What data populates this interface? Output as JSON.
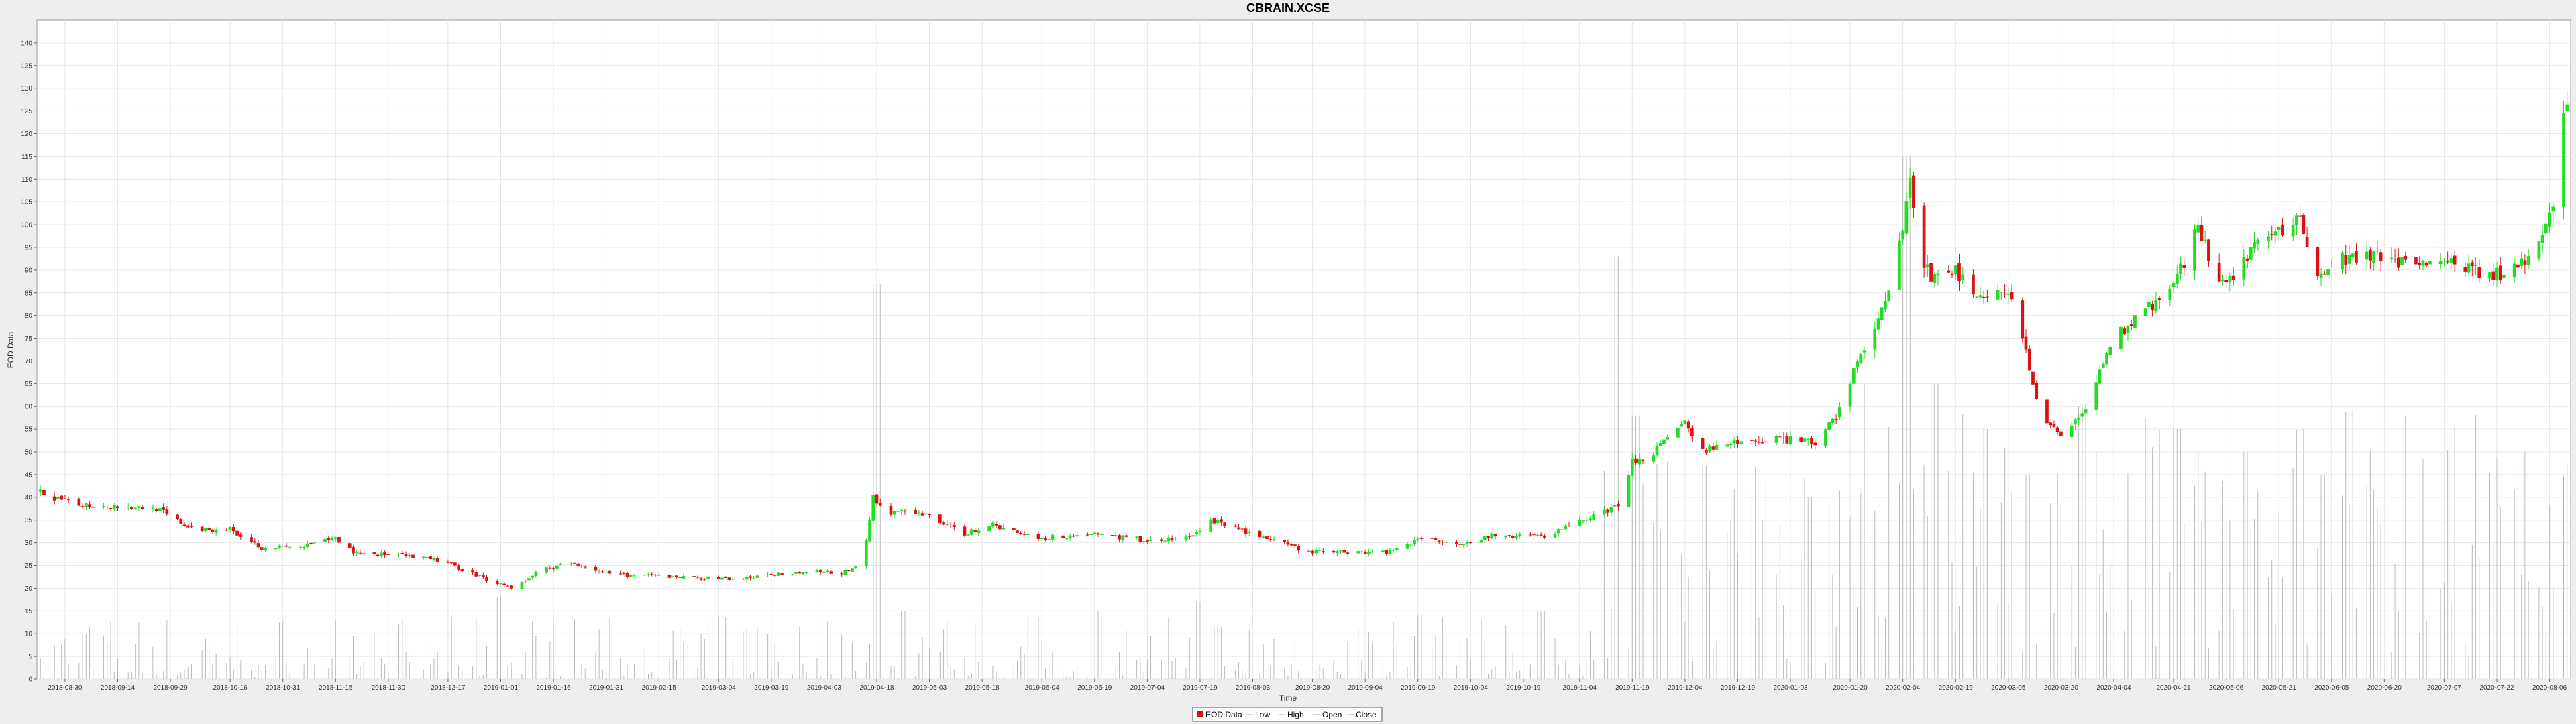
{
  "chart_data": {
    "type": "candlestick",
    "title": "CBRAIN.XCSE",
    "xlabel": "Time",
    "ylabel": "EOD Data",
    "ylim": [
      0,
      145
    ],
    "yticks": [
      0,
      5,
      10,
      15,
      20,
      25,
      30,
      35,
      40,
      45,
      50,
      55,
      60,
      65,
      70,
      75,
      80,
      85,
      90,
      95,
      100,
      105,
      110,
      115,
      120,
      125,
      130,
      135,
      140
    ],
    "xlim": [
      "2018-08-22",
      "2020-08-12"
    ],
    "xticks": [
      "2018-08-30",
      "2018-09-14",
      "2018-09-29",
      "2018-10-16",
      "2018-10-31",
      "2018-11-15",
      "2018-11-30",
      "2018-12-17",
      "2019-01-01",
      "2019-01-16",
      "2019-01-31",
      "2019-02-15",
      "2019-03-04",
      "2019-03-19",
      "2019-04-03",
      "2019-04-18",
      "2019-05-03",
      "2019-05-18",
      "2019-06-04",
      "2019-06-19",
      "2019-07-04",
      "2019-07-19",
      "2019-08-03",
      "2019-08-20",
      "2019-09-04",
      "2019-09-19",
      "2019-10-04",
      "2019-10-19",
      "2019-11-04",
      "2019-11-19",
      "2019-12-04",
      "2019-12-19",
      "2020-01-03",
      "2020-01-20",
      "2020-02-04",
      "2020-02-19",
      "2020-03-05",
      "2020-03-20",
      "2020-04-04",
      "2020-04-21",
      "2020-05-06",
      "2020-05-21",
      "2020-06-05",
      "2020-06-20",
      "2020-07-07",
      "2020-07-22",
      "2020-08-06"
    ],
    "grid": true,
    "legend_position": "bottom-center",
    "legend": [
      "EOD Data",
      "Low",
      "High",
      "Open",
      "Close"
    ],
    "colors": {
      "up": "#22dd22",
      "down": "#dd1111",
      "volume": "#bbbbbb",
      "grid": "#e6e6e6"
    },
    "close_path": [
      [
        "2018-08-23",
        41
      ],
      [
        "2018-09-01",
        38.5
      ],
      [
        "2018-09-15",
        38
      ],
      [
        "2018-09-25",
        37.5
      ],
      [
        "2018-10-05",
        33
      ],
      [
        "2018-10-16",
        33
      ],
      [
        "2018-10-25",
        29
      ],
      [
        "2018-11-05",
        29
      ],
      [
        "2018-11-15",
        31
      ],
      [
        "2018-11-20",
        28
      ],
      [
        "2018-12-05",
        27
      ],
      [
        "2018-12-15",
        26
      ],
      [
        "2018-12-28",
        22
      ],
      [
        "2019-01-05",
        20
      ],
      [
        "2019-01-12",
        24
      ],
      [
        "2019-01-22",
        25.5
      ],
      [
        "2019-02-01",
        23
      ],
      [
        "2019-02-20",
        22.5
      ],
      [
        "2019-03-10",
        22
      ],
      [
        "2019-03-25",
        23.5
      ],
      [
        "2019-04-10",
        23.5
      ],
      [
        "2019-04-14",
        26
      ],
      [
        "2019-04-17",
        40
      ],
      [
        "2019-04-20",
        37
      ],
      [
        "2019-05-03",
        36
      ],
      [
        "2019-05-13",
        32
      ],
      [
        "2019-05-20",
        34
      ],
      [
        "2019-06-04",
        31
      ],
      [
        "2019-06-19",
        32
      ],
      [
        "2019-07-04",
        30.5
      ],
      [
        "2019-07-16",
        31
      ],
      [
        "2019-07-22",
        35
      ],
      [
        "2019-08-03",
        32
      ],
      [
        "2019-08-18",
        28
      ],
      [
        "2019-08-28",
        28
      ],
      [
        "2019-09-10",
        28
      ],
      [
        "2019-09-20",
        31
      ],
      [
        "2019-10-01",
        30
      ],
      [
        "2019-10-10",
        31.5
      ],
      [
        "2019-10-25",
        31.5
      ],
      [
        "2019-11-05",
        35
      ],
      [
        "2019-11-15",
        38
      ],
      [
        "2019-11-19",
        48
      ],
      [
        "2019-11-25",
        50
      ],
      [
        "2019-12-04",
        56
      ],
      [
        "2019-12-08",
        50
      ],
      [
        "2019-12-19",
        52
      ],
      [
        "2019-12-30",
        53
      ],
      [
        "2020-01-10",
        52
      ],
      [
        "2020-01-16",
        58
      ],
      [
        "2020-01-22",
        70
      ],
      [
        "2020-01-28",
        78
      ],
      [
        "2020-02-01",
        88
      ],
      [
        "2020-02-04",
        100
      ],
      [
        "2020-02-06",
        112
      ],
      [
        "2020-02-08",
        95
      ],
      [
        "2020-02-12",
        88
      ],
      [
        "2020-02-19",
        90
      ],
      [
        "2020-02-25",
        85
      ],
      [
        "2020-03-05",
        85
      ],
      [
        "2020-03-10",
        72
      ],
      [
        "2020-03-14",
        58
      ],
      [
        "2020-03-20",
        53
      ],
      [
        "2020-03-27",
        60
      ],
      [
        "2020-04-04",
        75
      ],
      [
        "2020-04-11",
        80
      ],
      [
        "2020-04-21",
        86
      ],
      [
        "2020-04-28",
        100
      ],
      [
        "2020-05-03",
        88
      ],
      [
        "2020-05-10",
        90
      ],
      [
        "2020-05-16",
        100
      ],
      [
        "2020-05-21",
        98
      ],
      [
        "2020-05-27",
        102
      ],
      [
        "2020-06-01",
        88
      ],
      [
        "2020-06-05",
        92
      ],
      [
        "2020-06-15",
        93
      ],
      [
        "2020-06-25",
        92
      ],
      [
        "2020-07-07",
        91.5
      ],
      [
        "2020-07-22",
        89
      ],
      [
        "2020-07-28",
        90
      ],
      [
        "2020-08-01",
        95
      ],
      [
        "2020-08-04",
        98
      ],
      [
        "2020-08-07",
        105
      ],
      [
        "2020-08-10",
        125
      ],
      [
        "2020-08-11",
        127
      ]
    ],
    "volume_spikes": [
      [
        "2018-09-05",
        10
      ],
      [
        "2018-12-31",
        18
      ],
      [
        "2019-04-18",
        87
      ],
      [
        "2019-04-25",
        15
      ],
      [
        "2019-06-21",
        15
      ],
      [
        "2019-07-19",
        17
      ],
      [
        "2019-09-20",
        14
      ],
      [
        "2019-10-24",
        15
      ],
      [
        "2019-11-15",
        93
      ],
      [
        "2019-11-20",
        58
      ],
      [
        "2019-12-09",
        47
      ],
      [
        "2020-01-08",
        40
      ],
      [
        "2020-01-25",
        65
      ],
      [
        "2020-02-05",
        115
      ],
      [
        "2020-02-13",
        65
      ],
      [
        "2020-02-28",
        55
      ],
      [
        "2020-03-11",
        45
      ],
      [
        "2020-03-26",
        60
      ],
      [
        "2020-04-22",
        55
      ],
      [
        "2020-05-11",
        50
      ],
      [
        "2020-06-03",
        45
      ],
      [
        "2020-07-21",
        30
      ],
      [
        "2020-08-10",
        40
      ]
    ]
  }
}
